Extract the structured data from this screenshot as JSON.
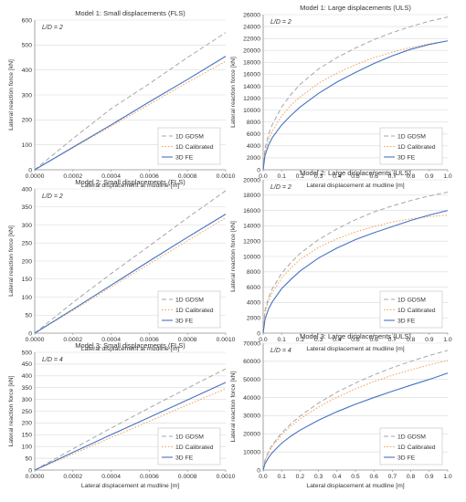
{
  "colors": {
    "gdsm": "#a6a6a6",
    "calibrated": "#f4a15a",
    "fe": "#4472c4",
    "grid": "#d9d9d9",
    "axis": "#8c8c8c"
  },
  "chart_data": [
    {
      "type": "line",
      "title": "Model 1: Small displacements (FLS)",
      "annotation": "L/D = 2",
      "xlabel": "Lateral displacement at mudline [m]",
      "ylabel": "Lateral reaction force [kN]",
      "xlim": [
        0,
        0.001
      ],
      "ylim": [
        0,
        600
      ],
      "xticks": [
        "0.0000",
        "0.0002",
        "0.0004",
        "0.0006",
        "0.0008",
        "0.0010"
      ],
      "yticks": [
        "0",
        "100",
        "200",
        "300",
        "400",
        "500",
        "600"
      ],
      "legend_position": "bottom-right",
      "grid": "horizontal",
      "series": [
        {
          "name": "1D GDSM",
          "style": "dashed",
          "x": [
            0,
            0.0002,
            0.0004,
            0.0006,
            0.0008,
            0.001
          ],
          "y": [
            0,
            125,
            245,
            345,
            450,
            550
          ]
        },
        {
          "name": "1D Calibrated",
          "style": "dotted",
          "x": [
            0,
            0.0002,
            0.0004,
            0.0006,
            0.0008,
            0.001
          ],
          "y": [
            0,
            88,
            175,
            262,
            350,
            435
          ]
        },
        {
          "name": "3D FE",
          "style": "solid",
          "x": [
            0,
            0.0002,
            0.0004,
            0.0006,
            0.0008,
            0.001
          ],
          "y": [
            0,
            90,
            180,
            272,
            362,
            455
          ]
        }
      ]
    },
    {
      "type": "line",
      "title": "Model 1: Large displacements (ULS)",
      "annotation": "L/D = 2",
      "xlabel": "Lateral displacement at mudline [m]",
      "ylabel": "Lateral reaction force [kN]",
      "xlim": [
        0,
        1
      ],
      "ylim": [
        0,
        26000
      ],
      "xticks": [
        "0.0",
        "0.1",
        "0.2",
        "0.3",
        "0.4",
        "0.5",
        "0.6",
        "0.7",
        "0.8",
        "0.9",
        "1.0"
      ],
      "yticks": [
        "0",
        "2000",
        "4000",
        "6000",
        "8000",
        "10000",
        "12000",
        "14000",
        "16000",
        "18000",
        "20000",
        "22000",
        "24000",
        "26000"
      ],
      "legend_position": "bottom-right",
      "grid": "horizontal",
      "series": [
        {
          "name": "1D GDSM",
          "style": "dashed",
          "x": [
            0,
            0.01,
            0.03,
            0.05,
            0.1,
            0.15,
            0.2,
            0.3,
            0.4,
            0.5,
            0.6,
            0.7,
            0.8,
            0.9,
            1.0
          ],
          "y": [
            0,
            3600,
            6000,
            7600,
            10500,
            12600,
            14300,
            16900,
            18800,
            20400,
            21800,
            23000,
            24000,
            24900,
            25600
          ]
        },
        {
          "name": "1D Calibrated",
          "style": "dotted",
          "x": [
            0,
            0.01,
            0.03,
            0.05,
            0.1,
            0.15,
            0.2,
            0.3,
            0.4,
            0.5,
            0.6,
            0.7,
            0.8,
            0.9,
            1.0
          ],
          "y": [
            0,
            3000,
            5100,
            6500,
            9000,
            10800,
            12200,
            14500,
            16200,
            17600,
            18800,
            19700,
            20500,
            21100,
            21600
          ]
        },
        {
          "name": "3D FE",
          "style": "solid",
          "x": [
            0,
            0.01,
            0.03,
            0.05,
            0.1,
            0.15,
            0.2,
            0.3,
            0.4,
            0.5,
            0.6,
            0.7,
            0.8,
            0.9,
            1.0
          ],
          "y": [
            0,
            2400,
            4200,
            5400,
            7500,
            9100,
            10500,
            12800,
            14700,
            16300,
            17800,
            19100,
            20200,
            21000,
            21600
          ]
        }
      ]
    },
    {
      "type": "line",
      "title": "Model 2: Small displacements (FLS)",
      "annotation": "L/D = 2",
      "xlabel": "Lateral displacement at mudline [m]",
      "ylabel": "Lateral reaction force [kN]",
      "xlim": [
        0,
        0.001
      ],
      "ylim": [
        0,
        400
      ],
      "xticks": [
        "0.0000",
        "0.0002",
        "0.0004",
        "0.0006",
        "0.0008",
        "0.0010"
      ],
      "yticks": [
        "0",
        "50",
        "100",
        "150",
        "200",
        "250",
        "300",
        "350",
        "400"
      ],
      "legend_position": "bottom-right",
      "grid": "horizontal",
      "series": [
        {
          "name": "1D GDSM",
          "style": "dashed",
          "x": [
            0,
            0.0002,
            0.0004,
            0.0006,
            0.0008,
            0.001
          ],
          "y": [
            0,
            85,
            165,
            242,
            320,
            395
          ]
        },
        {
          "name": "1D Calibrated",
          "style": "dotted",
          "x": [
            0,
            0.0002,
            0.0004,
            0.0006,
            0.0008,
            0.001
          ],
          "y": [
            0,
            63,
            128,
            192,
            256,
            320
          ]
        },
        {
          "name": "3D FE",
          "style": "solid",
          "x": [
            0,
            0.0002,
            0.0004,
            0.0006,
            0.0008,
            0.001
          ],
          "y": [
            0,
            66,
            133,
            200,
            266,
            330
          ]
        }
      ]
    },
    {
      "type": "line",
      "title": "Model 2: Large displacements (ULS)",
      "annotation": "L/D = 2",
      "xlabel": "Lateral displacement at mudline [m]",
      "ylabel": "Lateral reaction force [kN]",
      "xlim": [
        0,
        1
      ],
      "ylim": [
        0,
        20000
      ],
      "xticks": [
        "0.0",
        "0.1",
        "0.2",
        "0.3",
        "0.4",
        "0.5",
        "0.6",
        "0.7",
        "0.8",
        "0.9",
        "1.0"
      ],
      "yticks": [
        "0",
        "2000",
        "4000",
        "6000",
        "8000",
        "10000",
        "12000",
        "14000",
        "16000",
        "18000",
        "20000"
      ],
      "legend_position": "bottom-right",
      "grid": "horizontal",
      "series": [
        {
          "name": "1D GDSM",
          "style": "dashed",
          "x": [
            0,
            0.01,
            0.03,
            0.05,
            0.1,
            0.15,
            0.2,
            0.3,
            0.4,
            0.5,
            0.6,
            0.7,
            0.8,
            0.9,
            1.0
          ],
          "y": [
            0,
            3000,
            4700,
            5800,
            7800,
            9200,
            10400,
            12200,
            13600,
            14800,
            15800,
            16600,
            17300,
            17900,
            18400
          ]
        },
        {
          "name": "1D Calibrated",
          "style": "dotted",
          "x": [
            0,
            0.01,
            0.03,
            0.05,
            0.1,
            0.15,
            0.2,
            0.3,
            0.4,
            0.5,
            0.6,
            0.7,
            0.8,
            0.9,
            1.0
          ],
          "y": [
            0,
            2700,
            4300,
            5300,
            7200,
            8500,
            9600,
            11200,
            12300,
            13200,
            13900,
            14500,
            14900,
            15200,
            15400
          ]
        },
        {
          "name": "3D FE",
          "style": "solid",
          "x": [
            0,
            0.01,
            0.03,
            0.05,
            0.1,
            0.15,
            0.2,
            0.3,
            0.4,
            0.5,
            0.6,
            0.7,
            0.8,
            0.9,
            1.0
          ],
          "y": [
            0,
            1800,
            3200,
            4100,
            5800,
            7000,
            8100,
            9800,
            11100,
            12200,
            13100,
            13900,
            14700,
            15400,
            16000
          ]
        }
      ]
    },
    {
      "type": "line",
      "title": "Model 3: Small displacements (FLS)",
      "annotation": "L/D = 4",
      "xlabel": "Lateral displacement at mudline [m]",
      "ylabel": "Lateral reaction force [kN]",
      "xlim": [
        0,
        0.001
      ],
      "ylim": [
        0,
        500
      ],
      "xticks": [
        "0.0000",
        "0.0002",
        "0.0004",
        "0.0006",
        "0.0008",
        "0.0010"
      ],
      "yticks": [
        "0",
        "50",
        "100",
        "150",
        "200",
        "250",
        "300",
        "350",
        "400",
        "450",
        "500"
      ],
      "legend_position": "bottom-right",
      "grid": "horizontal",
      "series": [
        {
          "name": "1D GDSM",
          "style": "dashed",
          "x": [
            0,
            0.0002,
            0.0004,
            0.0006,
            0.0008,
            0.001
          ],
          "y": [
            0,
            90,
            178,
            264,
            348,
            430
          ]
        },
        {
          "name": "1D Calibrated",
          "style": "dotted",
          "x": [
            0,
            0.0002,
            0.0004,
            0.0006,
            0.0008,
            0.001
          ],
          "y": [
            0,
            68,
            138,
            207,
            277,
            345
          ]
        },
        {
          "name": "3D FE",
          "style": "solid",
          "x": [
            0,
            0.0002,
            0.0004,
            0.0006,
            0.0008,
            0.001
          ],
          "y": [
            0,
            75,
            150,
            224,
            298,
            372
          ]
        }
      ]
    },
    {
      "type": "line",
      "title": "Model 3: Large displacements (ULS)",
      "annotation": "L/D = 4",
      "xlabel": "Lateral displacement at mudline [m]",
      "ylabel": "Lateral reaction force [kN]",
      "xlim": [
        0,
        1
      ],
      "ylim": [
        0,
        70000
      ],
      "xticks": [
        "0.0",
        "0.1",
        "0.2",
        "0.3",
        "0.4",
        "0.5",
        "0.6",
        "0.7",
        "0.8",
        "0.9",
        "1.0"
      ],
      "yticks": [
        "0",
        "10000",
        "20000",
        "30000",
        "40000",
        "50000",
        "60000",
        "70000"
      ],
      "legend_position": "bottom-right",
      "grid": "horizontal",
      "series": [
        {
          "name": "1D GDSM",
          "style": "dashed",
          "x": [
            0,
            0.01,
            0.03,
            0.05,
            0.1,
            0.15,
            0.2,
            0.3,
            0.4,
            0.5,
            0.6,
            0.7,
            0.8,
            0.9,
            1.0
          ],
          "y": [
            0,
            5500,
            10500,
            14000,
            20500,
            25500,
            29800,
            37000,
            43000,
            48000,
            52500,
            56500,
            60000,
            63200,
            66000
          ]
        },
        {
          "name": "1D Calibrated",
          "style": "dotted",
          "x": [
            0,
            0.01,
            0.03,
            0.05,
            0.1,
            0.15,
            0.2,
            0.3,
            0.4,
            0.5,
            0.6,
            0.7,
            0.8,
            0.9,
            1.0
          ],
          "y": [
            0,
            5000,
            9800,
            13200,
            19500,
            24200,
            28200,
            34800,
            40200,
            44800,
            48800,
            52300,
            55300,
            58000,
            60500
          ]
        },
        {
          "name": "3D FE",
          "style": "solid",
          "x": [
            0,
            0.01,
            0.03,
            0.05,
            0.1,
            0.15,
            0.2,
            0.3,
            0.4,
            0.5,
            0.6,
            0.7,
            0.8,
            0.9,
            1.0
          ],
          "y": [
            0,
            3500,
            7000,
            9700,
            14800,
            18700,
            22000,
            27500,
            32200,
            36300,
            40000,
            43500,
            46800,
            50000,
            53500
          ]
        }
      ]
    }
  ]
}
